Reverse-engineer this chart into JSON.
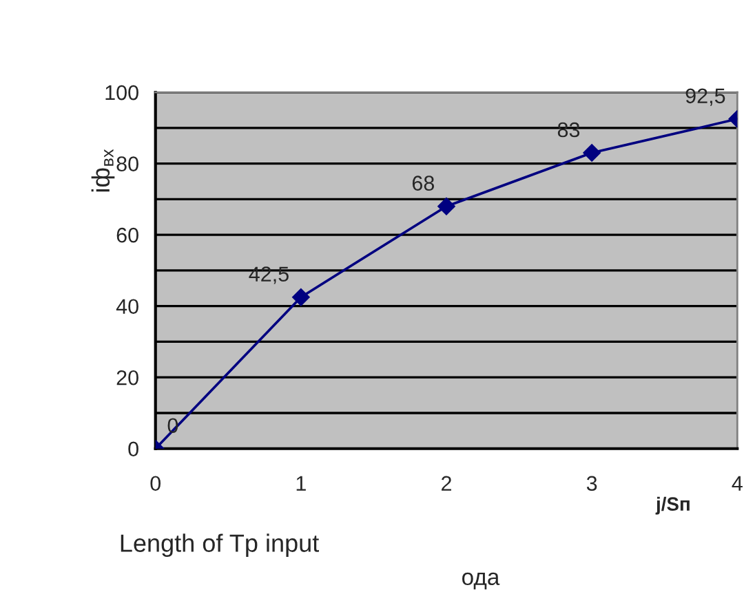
{
  "chart_data": {
    "type": "line",
    "x": [
      0,
      1,
      2,
      3,
      4
    ],
    "series": [
      {
        "color": "#000080",
        "values": [
          0,
          42.5,
          68,
          83,
          92.5
        ],
        "value_labels": [
          "0",
          "42,5",
          "68",
          "83",
          "92,5"
        ]
      }
    ],
    "xlim": [
      0,
      4
    ],
    "xticks": [
      0,
      1,
      2,
      3,
      4
    ],
    "ylim": [
      0,
      100
    ],
    "yticks": [
      0,
      {
        "value": 10,
        "label": null
      },
      20,
      {
        "value": 30,
        "label": null
      },
      40,
      {
        "value": 50,
        "label": null
      },
      60,
      {
        "value": 70,
        "label": null
      },
      80,
      {
        "value": 90,
        "label": null
      },
      100
    ],
    "xlabel": "j/Sп",
    "ylabel": "iф$_{вх}$",
    "annotations": [
      "Length of Tp input",
      "ода"
    ],
    "grid": "y",
    "marker": "diamond",
    "line_style": "solid"
  }
}
